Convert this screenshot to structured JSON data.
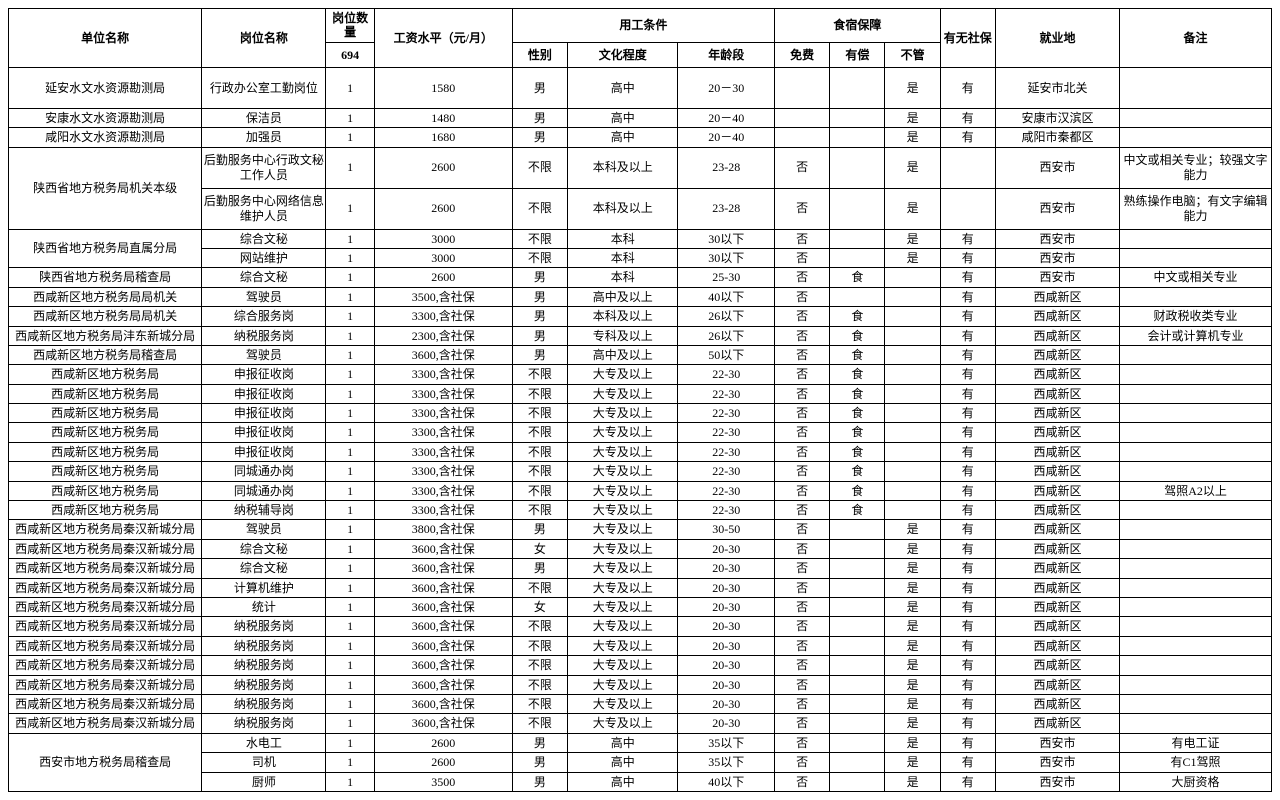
{
  "headers": {
    "unit": "单位名称",
    "position": "岗位名称",
    "qty_label": "岗位数量",
    "qty_total": "694",
    "salary": "工资水平（元/月）",
    "employ_group": "用工条件",
    "gender": "性别",
    "education": "文化程度",
    "age": "年龄段",
    "lodging_group": "食宿保障",
    "free": "免费",
    "paid": "有偿",
    "none": "不管",
    "social": "有无社保",
    "location": "就业地",
    "remark": "备注"
  },
  "rows": [
    {
      "unit": "延安水文水资源勘测局",
      "position": "行政办公室工勤岗位",
      "qty": "1",
      "salary": "1580",
      "gender": "男",
      "edu": "高中",
      "age": "20－30",
      "free": "",
      "paid": "",
      "none": "是",
      "social": "有",
      "loc": "延安市北关",
      "note": "",
      "tall": true
    },
    {
      "unit": "安康水文水资源勘测局",
      "position": "保洁员",
      "qty": "1",
      "salary": "1480",
      "gender": "男",
      "edu": "高中",
      "age": "20－40",
      "free": "",
      "paid": "",
      "none": "是",
      "social": "有",
      "loc": "安康市汉滨区",
      "note": ""
    },
    {
      "unit": "咸阳水文水资源勘测局",
      "position": "加强员",
      "qty": "1",
      "salary": "1680",
      "gender": "男",
      "edu": "高中",
      "age": "20－40",
      "free": "",
      "paid": "",
      "none": "是",
      "social": "有",
      "loc": "咸阳市秦都区",
      "note": ""
    },
    {
      "unit": "陕西省地方税务局机关本级",
      "unit_rowspan": 2,
      "position": "后勤服务中心行政文秘工作人员",
      "qty": "1",
      "salary": "2600",
      "gender": "不限",
      "edu": "本科及以上",
      "age": "23-28",
      "free": "否",
      "paid": "",
      "none": "是",
      "social": "",
      "loc": "西安市",
      "note": "中文或相关专业；较强文字能力",
      "tall": true
    },
    {
      "position": "后勤服务中心网络信息维护人员",
      "qty": "1",
      "salary": "2600",
      "gender": "不限",
      "edu": "本科及以上",
      "age": "23-28",
      "free": "否",
      "paid": "",
      "none": "是",
      "social": "",
      "loc": "西安市",
      "note": "熟练操作电脑；有文字编辑能力",
      "tall": true
    },
    {
      "unit": "陕西省地方税务局直属分局",
      "unit_rowspan": 2,
      "position": "综合文秘",
      "qty": "1",
      "salary": "3000",
      "gender": "不限",
      "edu": "本科",
      "age": "30以下",
      "free": "否",
      "paid": "",
      "none": "是",
      "social": "有",
      "loc": "西安市",
      "note": ""
    },
    {
      "position": "网站维护",
      "qty": "1",
      "salary": "3000",
      "gender": "不限",
      "edu": "本科",
      "age": "30以下",
      "free": "否",
      "paid": "",
      "none": "是",
      "social": "有",
      "loc": "西安市",
      "note": ""
    },
    {
      "unit": "陕西省地方税务局稽查局",
      "position": "综合文秘",
      "qty": "1",
      "salary": "2600",
      "gender": "男",
      "edu": "本科",
      "age": "25-30",
      "free": "否",
      "paid": "食",
      "none": "",
      "social": "有",
      "loc": "西安市",
      "note": "中文或相关专业"
    },
    {
      "unit": "西咸新区地方税务局局机关",
      "position": "驾驶员",
      "qty": "1",
      "salary": "3500,含社保",
      "gender": "男",
      "edu": "高中及以上",
      "age": "40以下",
      "free": "否",
      "paid": "",
      "none": "",
      "social": "有",
      "loc": "西咸新区",
      "note": ""
    },
    {
      "unit": "西咸新区地方税务局局机关",
      "position": "综合服务岗",
      "qty": "1",
      "salary": "3300,含社保",
      "gender": "男",
      "edu": "本科及以上",
      "age": "26以下",
      "free": "否",
      "paid": "食",
      "none": "",
      "social": "有",
      "loc": "西咸新区",
      "note": "财政税收类专业"
    },
    {
      "unit": "西咸新区地方税务局沣东新城分局",
      "position": "纳税服务岗",
      "qty": "1",
      "salary": "2300,含社保",
      "gender": "男",
      "edu": "专科及以上",
      "age": "26以下",
      "free": "否",
      "paid": "食",
      "none": "",
      "social": "有",
      "loc": "西咸新区",
      "note": "会计或计算机专业"
    },
    {
      "unit": "西咸新区地方税务局稽查局",
      "position": "驾驶员",
      "qty": "1",
      "salary": "3600,含社保",
      "gender": "男",
      "edu": "高中及以上",
      "age": "50以下",
      "free": "否",
      "paid": "食",
      "none": "",
      "social": "有",
      "loc": "西咸新区",
      "note": ""
    },
    {
      "unit": "西咸新区地方税务局",
      "position": "申报征收岗",
      "qty": "1",
      "salary": "3300,含社保",
      "gender": "不限",
      "edu": "大专及以上",
      "age": "22-30",
      "free": "否",
      "paid": "食",
      "none": "",
      "social": "有",
      "loc": "西咸新区",
      "note": ""
    },
    {
      "unit": "西咸新区地方税务局",
      "position": "申报征收岗",
      "qty": "1",
      "salary": "3300,含社保",
      "gender": "不限",
      "edu": "大专及以上",
      "age": "22-30",
      "free": "否",
      "paid": "食",
      "none": "",
      "social": "有",
      "loc": "西咸新区",
      "note": ""
    },
    {
      "unit": "西咸新区地方税务局",
      "position": "申报征收岗",
      "qty": "1",
      "salary": "3300,含社保",
      "gender": "不限",
      "edu": "大专及以上",
      "age": "22-30",
      "free": "否",
      "paid": "食",
      "none": "",
      "social": "有",
      "loc": "西咸新区",
      "note": ""
    },
    {
      "unit": "西咸新区地方税务局",
      "position": "申报征收岗",
      "qty": "1",
      "salary": "3300,含社保",
      "gender": "不限",
      "edu": "大专及以上",
      "age": "22-30",
      "free": "否",
      "paid": "食",
      "none": "",
      "social": "有",
      "loc": "西咸新区",
      "note": ""
    },
    {
      "unit": "西咸新区地方税务局",
      "position": "申报征收岗",
      "qty": "1",
      "salary": "3300,含社保",
      "gender": "不限",
      "edu": "大专及以上",
      "age": "22-30",
      "free": "否",
      "paid": "食",
      "none": "",
      "social": "有",
      "loc": "西咸新区",
      "note": ""
    },
    {
      "unit": "西咸新区地方税务局",
      "position": "同城通办岗",
      "qty": "1",
      "salary": "3300,含社保",
      "gender": "不限",
      "edu": "大专及以上",
      "age": "22-30",
      "free": "否",
      "paid": "食",
      "none": "",
      "social": "有",
      "loc": "西咸新区",
      "note": ""
    },
    {
      "unit": "西咸新区地方税务局",
      "position": "同城通办岗",
      "qty": "1",
      "salary": "3300,含社保",
      "gender": "不限",
      "edu": "大专及以上",
      "age": "22-30",
      "free": "否",
      "paid": "食",
      "none": "",
      "social": "有",
      "loc": "西咸新区",
      "note": "驾照A2以上"
    },
    {
      "unit": "西咸新区地方税务局",
      "position": "纳税辅导岗",
      "qty": "1",
      "salary": "3300,含社保",
      "gender": "不限",
      "edu": "大专及以上",
      "age": "22-30",
      "free": "否",
      "paid": "食",
      "none": "",
      "social": "有",
      "loc": "西咸新区",
      "note": ""
    },
    {
      "unit": "西咸新区地方税务局秦汉新城分局",
      "position": "驾驶员",
      "qty": "1",
      "salary": "3800,含社保",
      "gender": "男",
      "edu": "大专及以上",
      "age": "30-50",
      "free": "否",
      "paid": "",
      "none": "是",
      "social": "有",
      "loc": "西咸新区",
      "note": ""
    },
    {
      "unit": "西咸新区地方税务局秦汉新城分局",
      "position": "综合文秘",
      "qty": "1",
      "salary": "3600,含社保",
      "gender": "女",
      "edu": "大专及以上",
      "age": "20-30",
      "free": "否",
      "paid": "",
      "none": "是",
      "social": "有",
      "loc": "西咸新区",
      "note": ""
    },
    {
      "unit": "西咸新区地方税务局秦汉新城分局",
      "position": "综合文秘",
      "qty": "1",
      "salary": "3600,含社保",
      "gender": "男",
      "edu": "大专及以上",
      "age": "20-30",
      "free": "否",
      "paid": "",
      "none": "是",
      "social": "有",
      "loc": "西咸新区",
      "note": ""
    },
    {
      "unit": "西咸新区地方税务局秦汉新城分局",
      "position": "计算机维护",
      "qty": "1",
      "salary": "3600,含社保",
      "gender": "不限",
      "edu": "大专及以上",
      "age": "20-30",
      "free": "否",
      "paid": "",
      "none": "是",
      "social": "有",
      "loc": "西咸新区",
      "note": ""
    },
    {
      "unit": "西咸新区地方税务局秦汉新城分局",
      "position": "统计",
      "qty": "1",
      "salary": "3600,含社保",
      "gender": "女",
      "edu": "大专及以上",
      "age": "20-30",
      "free": "否",
      "paid": "",
      "none": "是",
      "social": "有",
      "loc": "西咸新区",
      "note": ""
    },
    {
      "unit": "西咸新区地方税务局秦汉新城分局",
      "position": "纳税服务岗",
      "qty": "1",
      "salary": "3600,含社保",
      "gender": "不限",
      "edu": "大专及以上",
      "age": "20-30",
      "free": "否",
      "paid": "",
      "none": "是",
      "social": "有",
      "loc": "西咸新区",
      "note": ""
    },
    {
      "unit": "西咸新区地方税务局秦汉新城分局",
      "position": "纳税服务岗",
      "qty": "1",
      "salary": "3600,含社保",
      "gender": "不限",
      "edu": "大专及以上",
      "age": "20-30",
      "free": "否",
      "paid": "",
      "none": "是",
      "social": "有",
      "loc": "西咸新区",
      "note": ""
    },
    {
      "unit": "西咸新区地方税务局秦汉新城分局",
      "position": "纳税服务岗",
      "qty": "1",
      "salary": "3600,含社保",
      "gender": "不限",
      "edu": "大专及以上",
      "age": "20-30",
      "free": "否",
      "paid": "",
      "none": "是",
      "social": "有",
      "loc": "西咸新区",
      "note": ""
    },
    {
      "unit": "西咸新区地方税务局秦汉新城分局",
      "position": "纳税服务岗",
      "qty": "1",
      "salary": "3600,含社保",
      "gender": "不限",
      "edu": "大专及以上",
      "age": "20-30",
      "free": "否",
      "paid": "",
      "none": "是",
      "social": "有",
      "loc": "西咸新区",
      "note": ""
    },
    {
      "unit": "西咸新区地方税务局秦汉新城分局",
      "position": "纳税服务岗",
      "qty": "1",
      "salary": "3600,含社保",
      "gender": "不限",
      "edu": "大专及以上",
      "age": "20-30",
      "free": "否",
      "paid": "",
      "none": "是",
      "social": "有",
      "loc": "西咸新区",
      "note": ""
    },
    {
      "unit": "西咸新区地方税务局秦汉新城分局",
      "position": "纳税服务岗",
      "qty": "1",
      "salary": "3600,含社保",
      "gender": "不限",
      "edu": "大专及以上",
      "age": "20-30",
      "free": "否",
      "paid": "",
      "none": "是",
      "social": "有",
      "loc": "西咸新区",
      "note": ""
    },
    {
      "unit": "西安市地方税务局稽查局",
      "unit_rowspan": 3,
      "position": "水电工",
      "qty": "1",
      "salary": "2600",
      "gender": "男",
      "edu": "高中",
      "age": "35以下",
      "free": "否",
      "paid": "",
      "none": "是",
      "social": "有",
      "loc": "西安市",
      "note": "有电工证"
    },
    {
      "position": "司机",
      "qty": "1",
      "salary": "2600",
      "gender": "男",
      "edu": "高中",
      "age": "35以下",
      "free": "否",
      "paid": "",
      "none": "是",
      "social": "有",
      "loc": "西安市",
      "note": "有C1驾照"
    },
    {
      "position": "厨师",
      "qty": "1",
      "salary": "3500",
      "gender": "男",
      "edu": "高中",
      "age": "40以下",
      "free": "否",
      "paid": "",
      "none": "是",
      "social": "有",
      "loc": "西安市",
      "note": "大厨资格"
    }
  ]
}
